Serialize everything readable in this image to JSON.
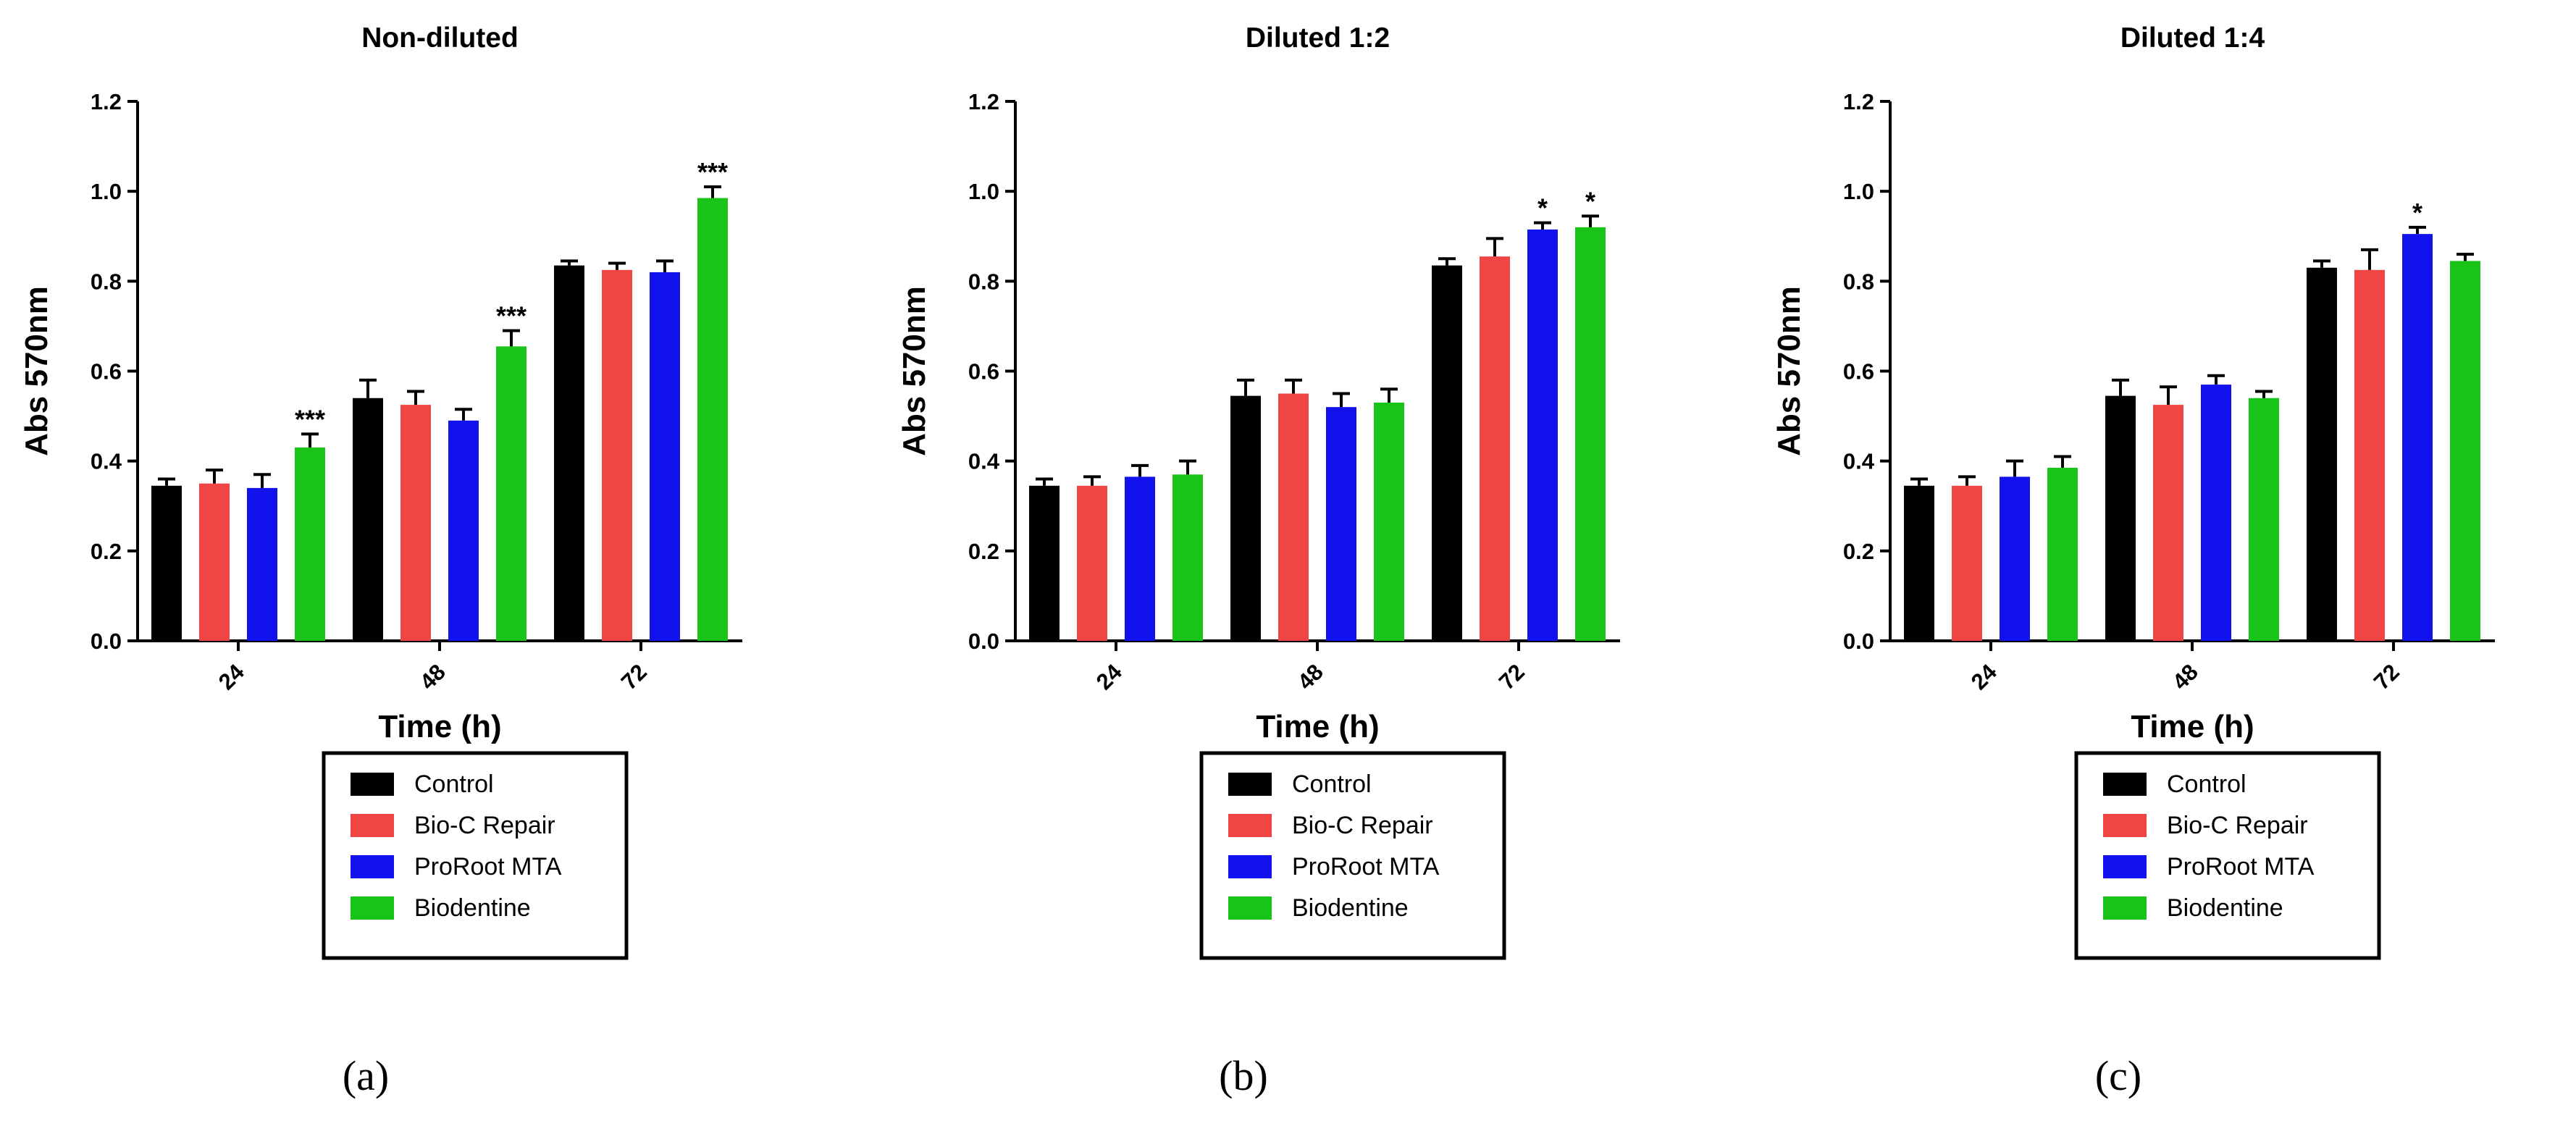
{
  "colors": {
    "Control": "#000000",
    "Bio-C Repair": "#f04545",
    "ProRoot MTA": "#1212ee",
    "Biodentine": "#18c418"
  },
  "chart_data": [
    {
      "type": "bar",
      "title": "Non-diluted",
      "caption": "(a)",
      "xlabel": "Time (h)",
      "ylabel": "Abs 570nm",
      "ylim": [
        0,
        1.2
      ],
      "yticks": [
        "0.0",
        "0.2",
        "0.4",
        "0.6",
        "0.8",
        "1.0",
        "1.2"
      ],
      "categories": [
        "24",
        "48",
        "72"
      ],
      "legend": [
        "Control",
        "Bio-C Repair",
        "ProRoot MTA",
        "Biodentine"
      ],
      "series": [
        {
          "name": "Control",
          "values": [
            0.345,
            0.54,
            0.835
          ],
          "errors": [
            0.015,
            0.04,
            0.01
          ]
        },
        {
          "name": "Bio-C Repair",
          "values": [
            0.35,
            0.525,
            0.825
          ],
          "errors": [
            0.03,
            0.03,
            0.015
          ]
        },
        {
          "name": "ProRoot MTA",
          "values": [
            0.34,
            0.49,
            0.82
          ],
          "errors": [
            0.03,
            0.025,
            0.025
          ]
        },
        {
          "name": "Biodentine",
          "values": [
            0.43,
            0.655,
            0.985
          ],
          "errors": [
            0.03,
            0.035,
            0.025
          ]
        }
      ],
      "significance": [
        {
          "series": "Biodentine",
          "category": "24",
          "label": "***"
        },
        {
          "series": "Biodentine",
          "category": "48",
          "label": "***"
        },
        {
          "series": "Biodentine",
          "category": "72",
          "label": "***"
        }
      ]
    },
    {
      "type": "bar",
      "title": "Diluted 1:2",
      "caption": "(b)",
      "xlabel": "Time (h)",
      "ylabel": "Abs 570nm",
      "ylim": [
        0,
        1.2
      ],
      "yticks": [
        "0.0",
        "0.2",
        "0.4",
        "0.6",
        "0.8",
        "1.0",
        "1.2"
      ],
      "categories": [
        "24",
        "48",
        "72"
      ],
      "legend": [
        "Control",
        "Bio-C Repair",
        "ProRoot MTA",
        "Biodentine"
      ],
      "series": [
        {
          "name": "Control",
          "values": [
            0.345,
            0.545,
            0.835
          ],
          "errors": [
            0.015,
            0.035,
            0.015
          ]
        },
        {
          "name": "Bio-C Repair",
          "values": [
            0.345,
            0.55,
            0.855
          ],
          "errors": [
            0.02,
            0.03,
            0.04
          ]
        },
        {
          "name": "ProRoot MTA",
          "values": [
            0.365,
            0.52,
            0.915
          ],
          "errors": [
            0.025,
            0.03,
            0.015
          ]
        },
        {
          "name": "Biodentine",
          "values": [
            0.37,
            0.53,
            0.92
          ],
          "errors": [
            0.03,
            0.03,
            0.025
          ]
        }
      ],
      "significance": [
        {
          "series": "ProRoot MTA",
          "category": "72",
          "label": "*"
        },
        {
          "series": "Biodentine",
          "category": "72",
          "label": "*"
        }
      ]
    },
    {
      "type": "bar",
      "title": "Diluted 1:4",
      "caption": "(c)",
      "xlabel": "Time (h)",
      "ylabel": "Abs 570nm",
      "ylim": [
        0,
        1.2
      ],
      "yticks": [
        "0.0",
        "0.2",
        "0.4",
        "0.6",
        "0.8",
        "1.0",
        "1.2"
      ],
      "categories": [
        "24",
        "48",
        "72"
      ],
      "legend": [
        "Control",
        "Bio-C Repair",
        "ProRoot MTA",
        "Biodentine"
      ],
      "series": [
        {
          "name": "Control",
          "values": [
            0.345,
            0.545,
            0.83
          ],
          "errors": [
            0.015,
            0.035,
            0.015
          ]
        },
        {
          "name": "Bio-C Repair",
          "values": [
            0.345,
            0.525,
            0.825
          ],
          "errors": [
            0.02,
            0.04,
            0.045
          ]
        },
        {
          "name": "ProRoot MTA",
          "values": [
            0.365,
            0.57,
            0.905
          ],
          "errors": [
            0.035,
            0.02,
            0.015
          ]
        },
        {
          "name": "Biodentine",
          "values": [
            0.385,
            0.54,
            0.845
          ],
          "errors": [
            0.025,
            0.015,
            0.015
          ]
        }
      ],
      "significance": [
        {
          "series": "ProRoot MTA",
          "category": "72",
          "label": "*"
        }
      ]
    }
  ]
}
